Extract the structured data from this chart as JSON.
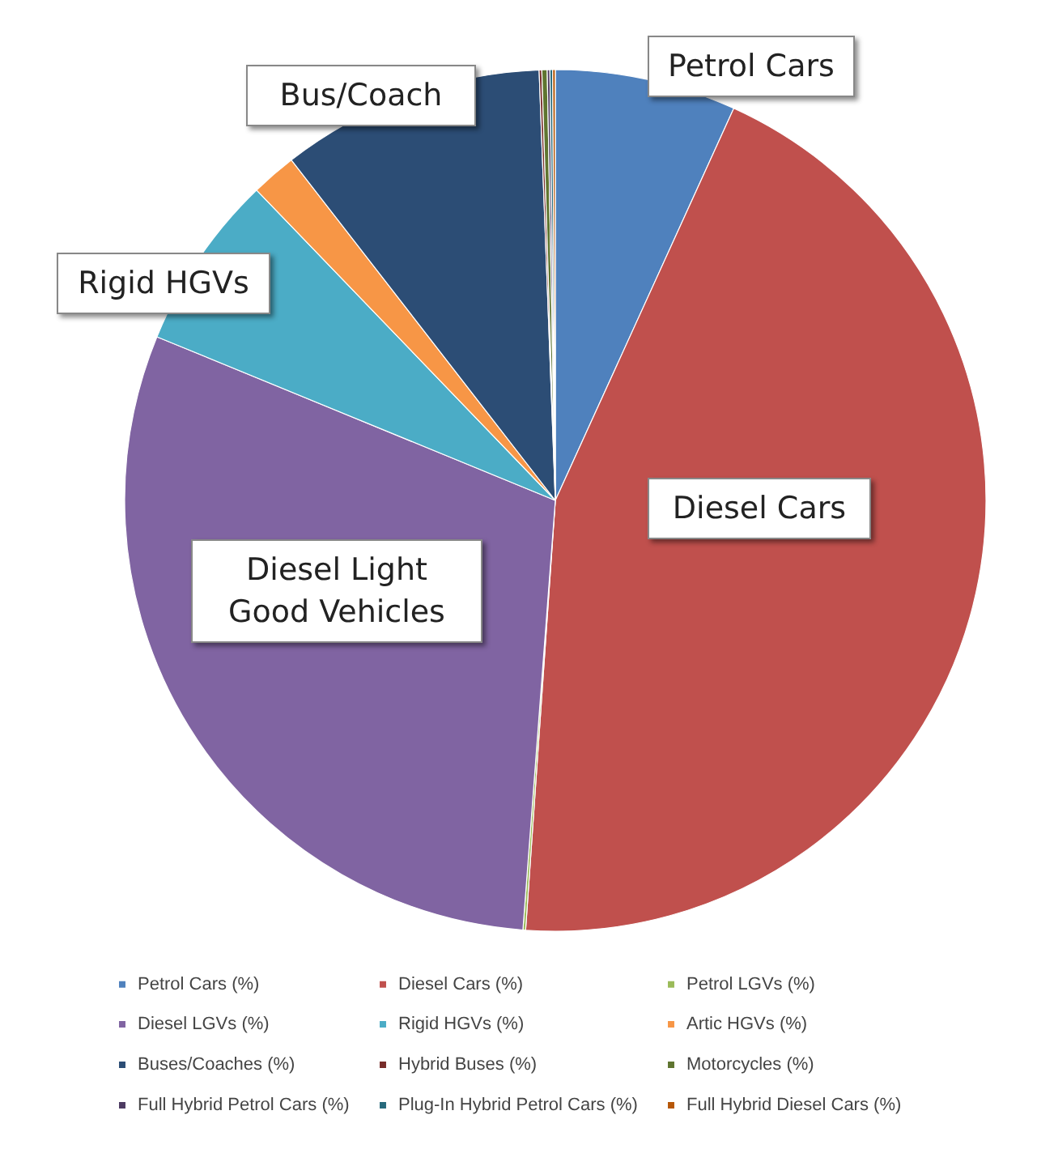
{
  "chart_data": {
    "type": "pie",
    "categories": [
      "Petrol Cars (%)",
      "Diesel Cars (%)",
      "Petrol LGVs (%)",
      "Diesel LGVs (%)",
      "Rigid HGVs (%)",
      "Artic HGVs (%)",
      "Buses/Coaches (%)",
      "Hybrid Buses (%)",
      "Motorcycles (%)",
      "Full Hybrid Petrol Cars (%)",
      "Plug-In Hybrid Petrol Cars (%)",
      "Full Hybrid Diesel Cars (%)"
    ],
    "values": [
      6.8,
      44.3,
      0.1,
      30.0,
      6.6,
      1.7,
      9.9,
      0.1,
      0.2,
      0.1,
      0.1,
      0.1
    ],
    "colors": [
      "#4f81bd",
      "#c0504d",
      "#9bbb59",
      "#8064a2",
      "#4bacc6",
      "#f79646",
      "#2c4d75",
      "#772c2a",
      "#5f7530",
      "#4d3b62",
      "#276a7c",
      "#b65708"
    ],
    "legend": "bottom",
    "annotations": [
      "Petrol Cars",
      "Bus/Coach",
      "Rigid HGVs",
      "Diesel Cars",
      "Diesel Light Good Vehicles"
    ]
  }
}
